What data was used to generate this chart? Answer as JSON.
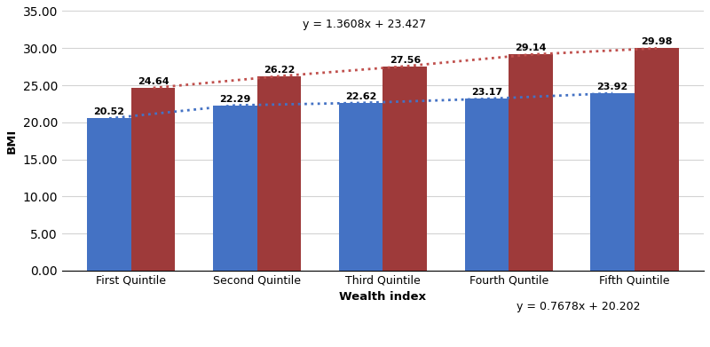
{
  "categories": [
    "First Quintile",
    "Second Quintile",
    "Third Quintile",
    "Fourth Quntile",
    "Fifth Quintile"
  ],
  "men_values": [
    20.52,
    22.29,
    22.62,
    23.17,
    23.92
  ],
  "women_values": [
    24.64,
    26.22,
    27.56,
    29.14,
    29.98
  ],
  "men_color": "#4472C4",
  "women_color": "#9E3A3A",
  "men_line_color": "#4472C4",
  "women_line_color": "#C0504D",
  "xlabel": "Wealth index",
  "ylabel": "BMI",
  "ylim_min": 0.0,
  "ylim_max": 35.0,
  "yticks": [
    0.0,
    5.0,
    10.0,
    15.0,
    20.0,
    25.0,
    30.0,
    35.0
  ],
  "men_eq": "y = 0.7678x + 20.202",
  "women_eq": "y = 1.3608x + 23.427",
  "bar_width": 0.35,
  "value_fontsize": 8,
  "label_fontsize": 9.5,
  "tick_fontsize": 9,
  "eq_fontsize": 9,
  "legend_fontsize": 9
}
